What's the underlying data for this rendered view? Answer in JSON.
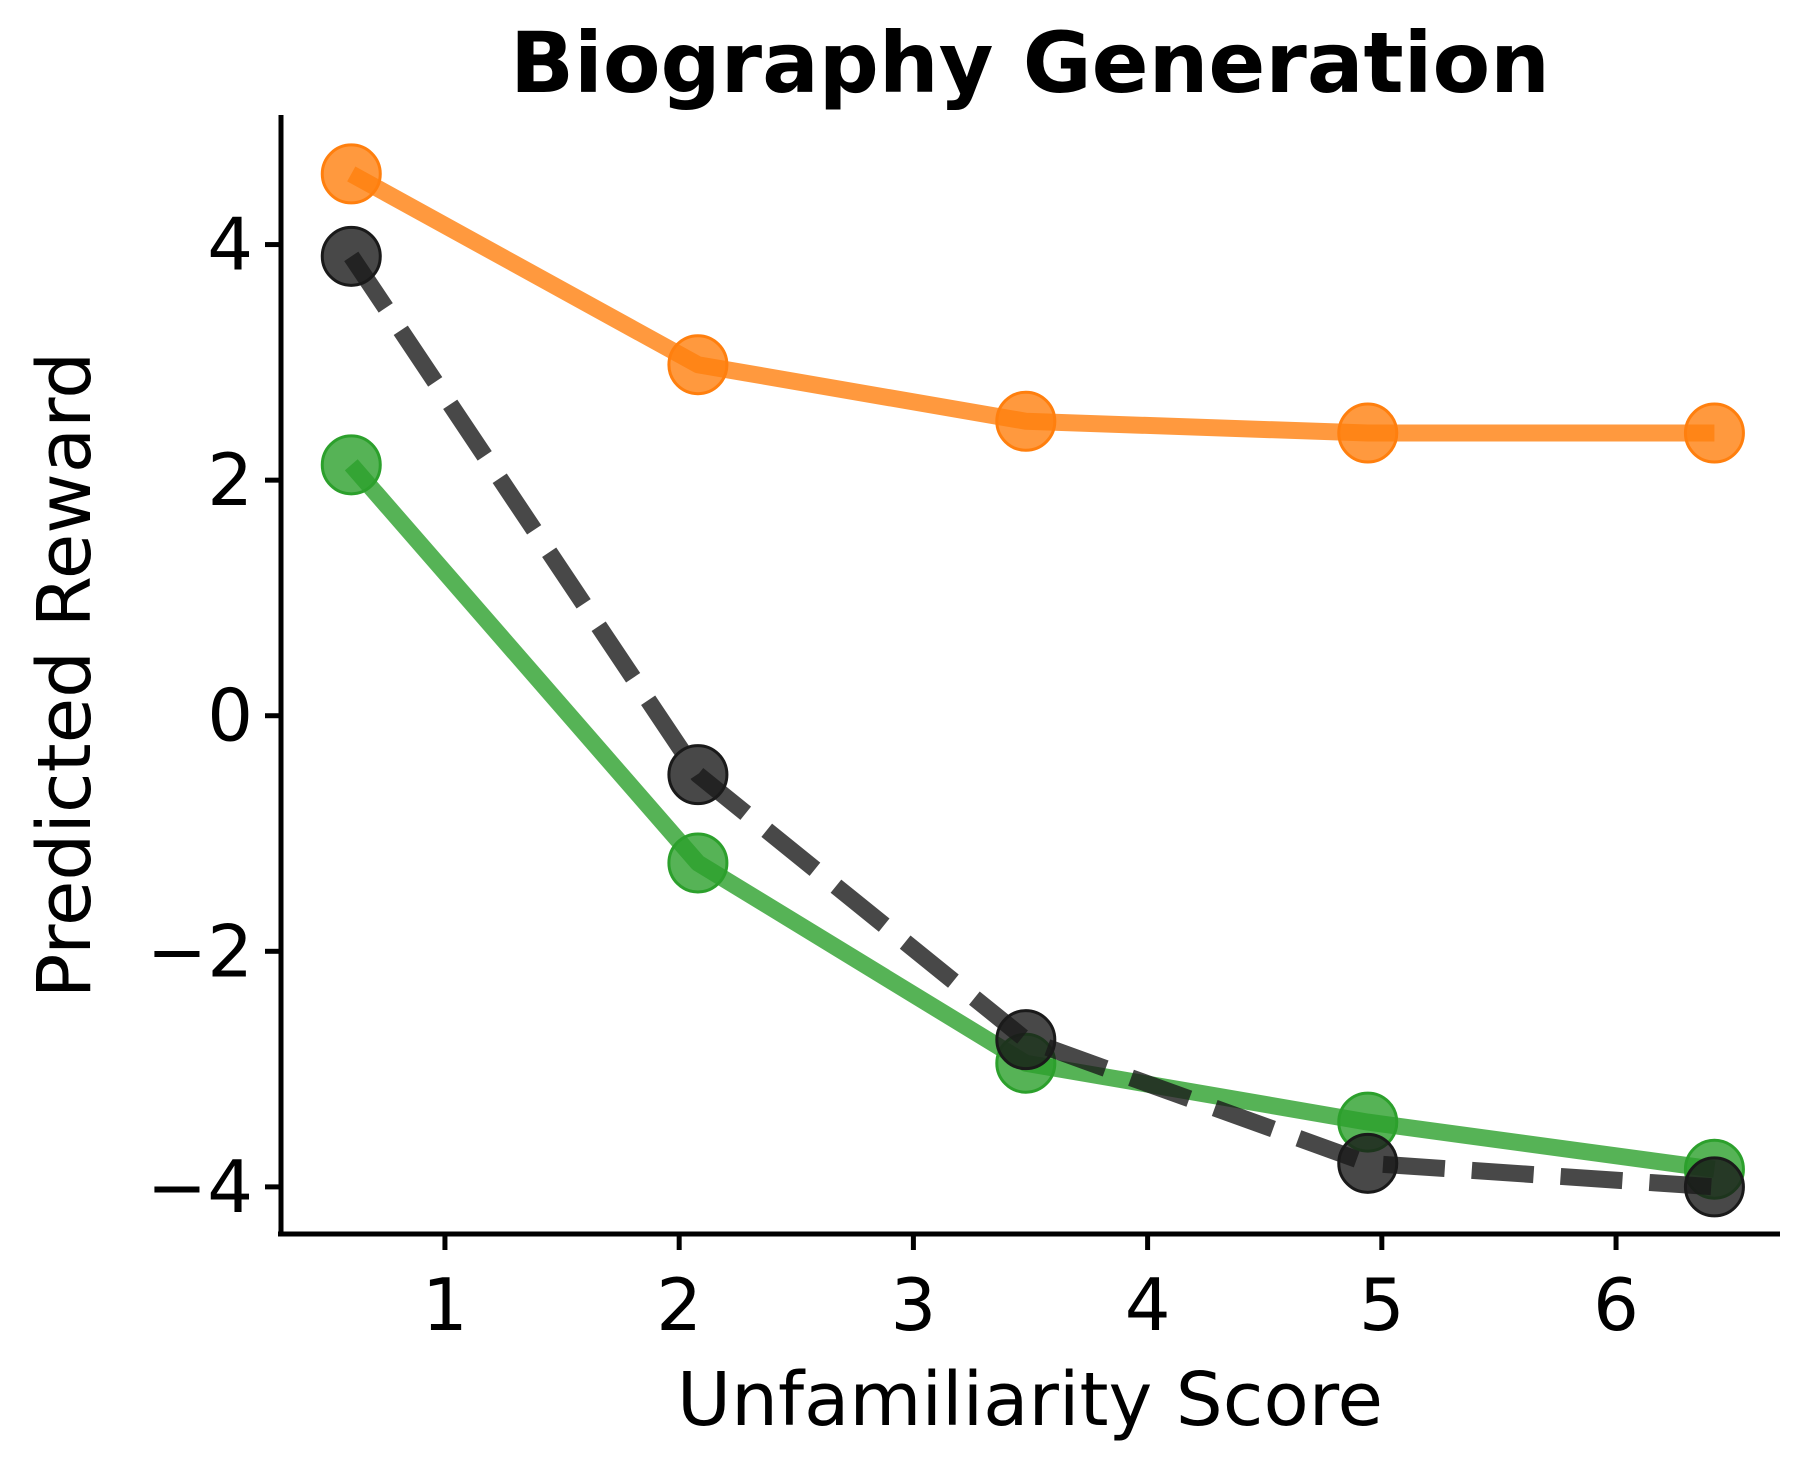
{
  "chart_data": {
    "type": "line",
    "title": "Biography Generation",
    "xlabel": "Unfamiliarity Score",
    "ylabel": "Predicted Reward",
    "x": [
      0.6,
      2.08,
      3.48,
      4.94,
      6.42
    ],
    "xlim": [
      0.3,
      6.7
    ],
    "ylim": [
      -4.4,
      5.1
    ],
    "xticks": [
      1,
      2,
      3,
      4,
      5,
      6
    ],
    "xtick_labels": [
      "1",
      "2",
      "3",
      "4",
      "5",
      "6"
    ],
    "yticks": [
      -4,
      -2,
      0,
      2,
      4
    ],
    "ytick_labels": [
      "−4",
      "−2",
      "0",
      "2",
      "4"
    ],
    "grid": false,
    "series": [
      {
        "color": "#ff7f0e",
        "style": "solid",
        "values": [
          4.6,
          2.98,
          2.5,
          2.4,
          2.4
        ]
      },
      {
        "color": "#2ca02c",
        "style": "solid",
        "values": [
          2.13,
          -1.25,
          -2.95,
          -3.45,
          -3.85
        ]
      },
      {
        "color": "#1a1a1a",
        "style": "dashed",
        "values": [
          3.9,
          -0.5,
          -2.75,
          -3.8,
          -4.0
        ]
      }
    ]
  }
}
